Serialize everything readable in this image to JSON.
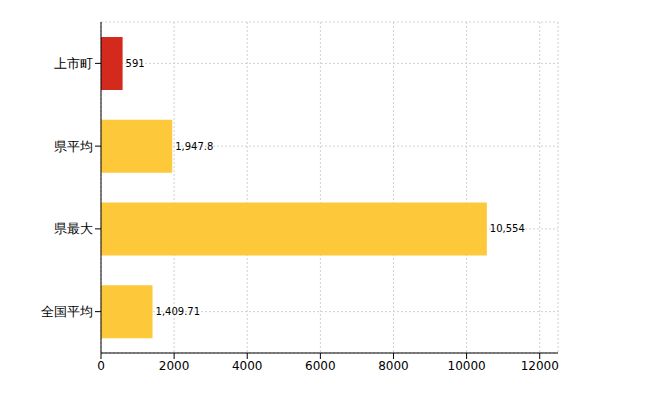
{
  "chart_data": {
    "type": "bar",
    "orientation": "horizontal",
    "categories": [
      "上市町",
      "県平均",
      "県最大",
      "全国平均"
    ],
    "values": [
      591,
      1947.8,
      10554,
      1409.71
    ],
    "value_labels": [
      "591",
      "1,947.8",
      "10,554",
      "1,409.71"
    ],
    "colors": [
      "#d42a1e",
      "#fdc93a",
      "#fdc93a",
      "#fdc93a"
    ],
    "xlim": [
      0,
      12500
    ],
    "xticks": [
      0,
      2000,
      4000,
      6000,
      8000,
      10000,
      12000
    ],
    "grid": true,
    "data_labels": true
  }
}
